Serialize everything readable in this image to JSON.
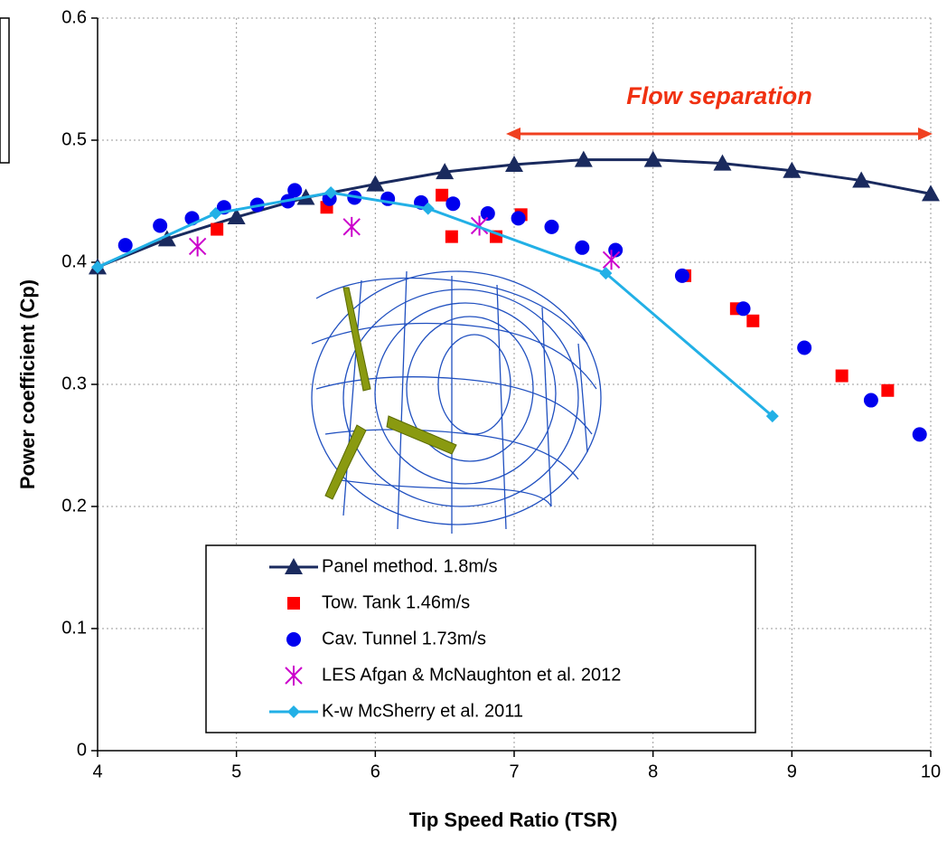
{
  "chart_data": {
    "type": "scatter",
    "x_label": "Tip Speed Ratio (TSR)",
    "y_label": "Power coefficient (Cp)",
    "annotation": "Flow separation",
    "xlim": [
      4,
      10
    ],
    "xticks": [
      4,
      5,
      6,
      7,
      8,
      9,
      10
    ],
    "ylim": [
      0,
      0.6
    ],
    "yticks": [
      0,
      0.1,
      0.2,
      0.3,
      0.4,
      0.5,
      0.6
    ],
    "grid": true,
    "legend": "lower center",
    "series": [
      {
        "name": "Panel method. 1.8m/s",
        "color": "#1a2a5e",
        "marker": "triangle",
        "line": true,
        "x": [
          4,
          4.5,
          5,
          5.5,
          6,
          6.5,
          7,
          7.5,
          8,
          8.5,
          9,
          9.5,
          10
        ],
        "values": [
          0.396,
          0.419,
          0.437,
          0.453,
          0.464,
          0.474,
          0.48,
          0.484,
          0.484,
          0.481,
          0.475,
          0.467,
          0.456
        ]
      },
      {
        "name": "Tow. Tank 1.46m/s",
        "color": "#ff0000",
        "marker": "square",
        "line": false,
        "x": [
          4.86,
          5.65,
          6.48,
          6.55,
          6.87,
          7.05,
          8.23,
          8.6,
          8.72,
          9.36,
          9.69
        ],
        "values": [
          0.427,
          0.445,
          0.455,
          0.421,
          0.421,
          0.439,
          0.389,
          0.362,
          0.352,
          0.307,
          0.295
        ]
      },
      {
        "name": "Cav. Tunnel 1.73m/s",
        "color": "#0000ee",
        "marker": "circle",
        "line": false,
        "x": [
          4.2,
          4.45,
          4.68,
          4.91,
          5.15,
          5.37,
          5.42,
          5.67,
          5.85,
          6.09,
          6.33,
          6.56,
          6.81,
          7.03,
          7.27,
          7.49,
          7.73,
          8.21,
          8.65,
          9.09,
          9.57,
          9.92
        ],
        "values": [
          0.414,
          0.43,
          0.436,
          0.445,
          0.447,
          0.45,
          0.459,
          0.452,
          0.453,
          0.452,
          0.449,
          0.448,
          0.44,
          0.436,
          0.429,
          0.412,
          0.41,
          0.389,
          0.362,
          0.33,
          0.287,
          0.259
        ]
      },
      {
        "name": "LES Afgan &  McNaughton et al. 2012",
        "color": "#cc00cc",
        "marker": "asterisk",
        "line": false,
        "x": [
          4.72,
          5.83,
          6.75,
          7.7
        ],
        "values": [
          0.413,
          0.429,
          0.43,
          0.402
        ]
      },
      {
        "name": "K-w McSherry et al. 2011",
        "color": "#22b0e6",
        "marker": "diamond",
        "line": true,
        "x": [
          4,
          4.85,
          5.68,
          6.38,
          7.66,
          8.86
        ],
        "values": [
          0.396,
          0.44,
          0.457,
          0.444,
          0.391,
          0.274
        ]
      }
    ]
  }
}
